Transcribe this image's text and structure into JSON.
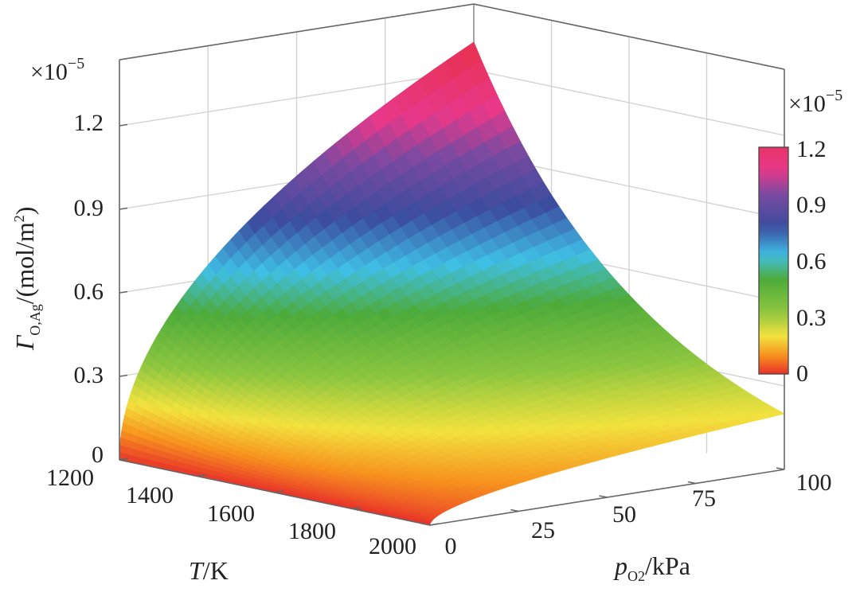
{
  "chart_data": {
    "type": "surface",
    "title": "",
    "xlabel": {
      "italic": "T",
      "rest": "/K"
    },
    "ylabel": {
      "italic": "p",
      "sub": "O2",
      "rest": "/kPa"
    },
    "zlabel": {
      "italic": "Γ",
      "sub": "O,Ag",
      "rest": "/(mol/m",
      "sup": "2",
      "end": ")"
    },
    "z_multiplier": "×10",
    "z_multiplier_exp": "−5",
    "x_ticks": [
      "1200",
      "1400",
      "1600",
      "1800",
      "2000"
    ],
    "y_ticks": [
      "0",
      "25",
      "50",
      "75",
      "100"
    ],
    "z_ticks": [
      "0",
      "0.3",
      "0.6",
      "0.9",
      "1.2"
    ],
    "colorbar_ticks": [
      "0",
      "0.3",
      "0.6",
      "0.9",
      "1.2"
    ],
    "xlim": [
      1200,
      2000
    ],
    "ylim": [
      0,
      100
    ],
    "zlim": [
      0,
      1.4
    ],
    "grid": true,
    "colormap": [
      "#e8302a",
      "#f7931e",
      "#f2e23e",
      "#8cc63f",
      "#4dab3a",
      "#3fbfe6",
      "#3b4c9e",
      "#7a4aa0",
      "#e8388a",
      "#e8304a"
    ],
    "surface_samples": {
      "T": [
        1200,
        1400,
        1600,
        1800,
        2000
      ],
      "p_at_100kPa_z": [
        1.3,
        0.81,
        0.51,
        0.32,
        0.2
      ],
      "p_at_0kPa_z": [
        0,
        0,
        0,
        0,
        0
      ]
    }
  }
}
